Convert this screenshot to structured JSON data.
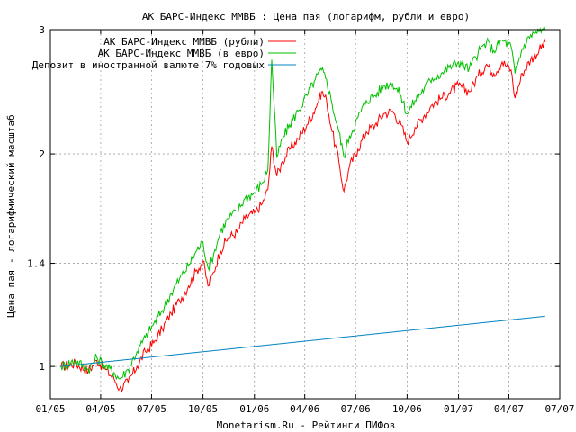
{
  "chart_data": {
    "type": "line",
    "title": "АК БАРС-Индекс ММВБ : Цена пая (логарифм, рубли и евро)",
    "xlabel": "Monetarism.Ru - Рейтинги ПИФов",
    "ylabel": "Цена пая - логарифмический масштаб",
    "y_scale": "log",
    "ylim": [
      0.9,
      3.0
    ],
    "xlim": [
      "2005-01-01",
      "2007-07-01"
    ],
    "x_ticks": [
      "01/05",
      "04/05",
      "07/05",
      "10/05",
      "01/06",
      "04/06",
      "07/06",
      "10/06",
      "01/07",
      "04/07",
      "07/07"
    ],
    "y_ticks": [
      1,
      1.4,
      2,
      3
    ],
    "y_tick_labels": [
      "1",
      "1.4",
      "2",
      "3"
    ],
    "grid": true,
    "legend_position": "top-left",
    "series": [
      {
        "name": "АК БАРС-Индекс ММВБ (рубли)",
        "color": "#ff0000",
        "points": [
          [
            "2005-01-20",
            1.0
          ],
          [
            "2005-02-15",
            1.01
          ],
          [
            "2005-03-10",
            0.985
          ],
          [
            "2005-03-25",
            1.02
          ],
          [
            "2005-04-10",
            0.99
          ],
          [
            "2005-04-25",
            0.96
          ],
          [
            "2005-05-05",
            0.93
          ],
          [
            "2005-05-20",
            0.95
          ],
          [
            "2005-06-05",
            1.0
          ],
          [
            "2005-06-20",
            1.05
          ],
          [
            "2005-07-05",
            1.08
          ],
          [
            "2005-07-20",
            1.13
          ],
          [
            "2005-08-05",
            1.19
          ],
          [
            "2005-08-20",
            1.24
          ],
          [
            "2005-09-05",
            1.3
          ],
          [
            "2005-09-20",
            1.37
          ],
          [
            "2005-10-01",
            1.41
          ],
          [
            "2005-10-10",
            1.3
          ],
          [
            "2005-10-20",
            1.36
          ],
          [
            "2005-11-01",
            1.46
          ],
          [
            "2005-11-15",
            1.52
          ],
          [
            "2005-12-01",
            1.55
          ],
          [
            "2005-12-15",
            1.62
          ],
          [
            "2006-01-01",
            1.65
          ],
          [
            "2006-01-15",
            1.7
          ],
          [
            "2006-01-25",
            1.78
          ],
          [
            "2006-02-01",
            2.05
          ],
          [
            "2006-02-10",
            1.86
          ],
          [
            "2006-02-20",
            1.95
          ],
          [
            "2006-03-05",
            2.03
          ],
          [
            "2006-03-20",
            2.1
          ],
          [
            "2006-04-05",
            2.2
          ],
          [
            "2006-04-20",
            2.32
          ],
          [
            "2006-05-01",
            2.45
          ],
          [
            "2006-05-10",
            2.38
          ],
          [
            "2006-05-20",
            2.15
          ],
          [
            "2006-06-01",
            1.95
          ],
          [
            "2006-06-10",
            1.77
          ],
          [
            "2006-06-20",
            1.92
          ],
          [
            "2006-07-05",
            2.03
          ],
          [
            "2006-07-20",
            2.15
          ],
          [
            "2006-08-05",
            2.2
          ],
          [
            "2006-08-20",
            2.28
          ],
          [
            "2006-09-05",
            2.3
          ],
          [
            "2006-09-20",
            2.2
          ],
          [
            "2006-10-01",
            2.08
          ],
          [
            "2006-10-15",
            2.18
          ],
          [
            "2006-11-01",
            2.27
          ],
          [
            "2006-11-15",
            2.35
          ],
          [
            "2006-12-01",
            2.4
          ],
          [
            "2006-12-15",
            2.44
          ],
          [
            "2007-01-01",
            2.5
          ],
          [
            "2007-01-20",
            2.45
          ],
          [
            "2007-02-05",
            2.58
          ],
          [
            "2007-02-20",
            2.68
          ],
          [
            "2007-03-05",
            2.6
          ],
          [
            "2007-03-20",
            2.7
          ],
          [
            "2007-04-05",
            2.63
          ],
          [
            "2007-04-12",
            2.4
          ],
          [
            "2007-04-25",
            2.6
          ],
          [
            "2007-05-10",
            2.72
          ],
          [
            "2007-05-25",
            2.8
          ],
          [
            "2007-06-05",
            2.88
          ]
        ]
      },
      {
        "name": "АК БАРС-Индекс ММВБ (в евро)",
        "color": "#00c000",
        "points": [
          [
            "2005-01-20",
            1.0
          ],
          [
            "2005-02-15",
            1.02
          ],
          [
            "2005-03-10",
            0.99
          ],
          [
            "2005-03-25",
            1.03
          ],
          [
            "2005-04-10",
            1.0
          ],
          [
            "2005-04-25",
            0.98
          ],
          [
            "2005-05-05",
            0.96
          ],
          [
            "2005-05-20",
            0.99
          ],
          [
            "2005-06-05",
            1.05
          ],
          [
            "2005-06-20",
            1.1
          ],
          [
            "2005-07-05",
            1.15
          ],
          [
            "2005-07-20",
            1.2
          ],
          [
            "2005-08-05",
            1.27
          ],
          [
            "2005-08-20",
            1.33
          ],
          [
            "2005-09-05",
            1.39
          ],
          [
            "2005-09-20",
            1.46
          ],
          [
            "2005-10-01",
            1.5
          ],
          [
            "2005-10-10",
            1.38
          ],
          [
            "2005-10-20",
            1.44
          ],
          [
            "2005-11-01",
            1.55
          ],
          [
            "2005-11-15",
            1.62
          ],
          [
            "2005-12-01",
            1.66
          ],
          [
            "2005-12-15",
            1.73
          ],
          [
            "2006-01-01",
            1.76
          ],
          [
            "2006-01-15",
            1.82
          ],
          [
            "2006-01-25",
            1.9
          ],
          [
            "2006-02-01",
            2.72
          ],
          [
            "2006-02-10",
            1.98
          ],
          [
            "2006-02-20",
            2.1
          ],
          [
            "2006-03-05",
            2.2
          ],
          [
            "2006-03-20",
            2.3
          ],
          [
            "2006-04-05",
            2.42
          ],
          [
            "2006-04-20",
            2.55
          ],
          [
            "2006-05-01",
            2.63
          ],
          [
            "2006-05-10",
            2.55
          ],
          [
            "2006-05-20",
            2.35
          ],
          [
            "2006-06-01",
            2.15
          ],
          [
            "2006-06-10",
            1.98
          ],
          [
            "2006-06-20",
            2.12
          ],
          [
            "2006-07-05",
            2.25
          ],
          [
            "2006-07-20",
            2.38
          ],
          [
            "2006-08-05",
            2.42
          ],
          [
            "2006-08-20",
            2.5
          ],
          [
            "2006-09-05",
            2.52
          ],
          [
            "2006-09-20",
            2.42
          ],
          [
            "2006-10-01",
            2.28
          ],
          [
            "2006-10-15",
            2.38
          ],
          [
            "2006-11-01",
            2.48
          ],
          [
            "2006-11-15",
            2.56
          ],
          [
            "2006-12-01",
            2.6
          ],
          [
            "2006-12-15",
            2.65
          ],
          [
            "2007-01-01",
            2.7
          ],
          [
            "2007-01-20",
            2.64
          ],
          [
            "2007-02-05",
            2.78
          ],
          [
            "2007-02-20",
            2.88
          ],
          [
            "2007-03-05",
            2.8
          ],
          [
            "2007-03-20",
            2.9
          ],
          [
            "2007-04-05",
            2.84
          ],
          [
            "2007-04-12",
            2.6
          ],
          [
            "2007-04-25",
            2.82
          ],
          [
            "2007-05-10",
            2.95
          ],
          [
            "2007-05-25",
            2.98
          ],
          [
            "2007-06-05",
            3.0
          ]
        ]
      },
      {
        "name": "Депозит в иностранной валюте 7% годовых",
        "color": "#0080c0",
        "points": [
          [
            "2005-01-20",
            1.0
          ],
          [
            "2007-06-05",
            1.178
          ]
        ]
      }
    ]
  }
}
